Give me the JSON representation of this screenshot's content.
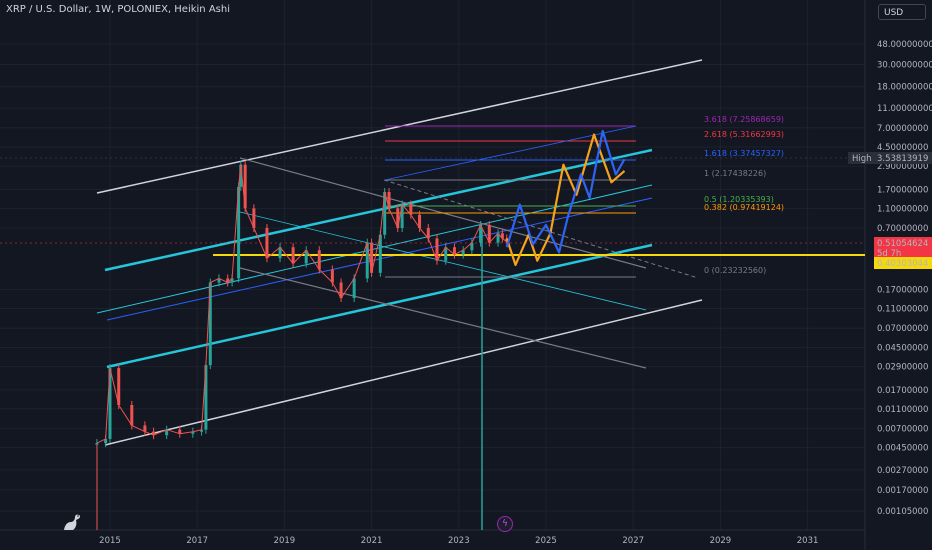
{
  "header": {
    "title": "XRP / U.S. Dollar, 1W, POLONIEX, Heikin Ashi",
    "currency": "USD"
  },
  "icons": {
    "logo": "tradingview-logo-icon",
    "event": "lightning-icon"
  },
  "chart_data": {
    "type": "candlestick",
    "y_scale": "log",
    "y_ticks": [
      "48.00000000",
      "30.00000000",
      "18.00000000",
      "11.00000000",
      "7.00000000",
      "4.50000000",
      "2.90000000",
      "1.70000000",
      "1.10000000",
      "0.70000000",
      "0.17000000",
      "0.11000000",
      "0.07000000",
      "0.04500000",
      "0.02900000",
      "0.01700000",
      "0.01100000",
      "0.00700000",
      "0.00450000",
      "0.00270000",
      "0.00170000",
      "0.00105000"
    ],
    "x_ticks": [
      "2015",
      "2017",
      "2019",
      "2021",
      "2023",
      "2025",
      "2027",
      "2029",
      "2031"
    ],
    "markers": [
      {
        "label": "High",
        "value": "3.53813919",
        "color": "#2a2e39"
      },
      {
        "label": "",
        "value": "0.51054624",
        "color": "#f23645"
      },
      {
        "label": "",
        "value": "5d 7h",
        "color": "#f23645"
      },
      {
        "label": "",
        "value": "0.40303044",
        "color": "#f5d90a"
      }
    ],
    "fib_levels": [
      {
        "ratio": "3.618",
        "value": "7.25868659",
        "color": "#9c27b0"
      },
      {
        "ratio": "2.618",
        "value": "5.31662993",
        "color": "#f23645"
      },
      {
        "ratio": "1.618",
        "value": "3.37457327",
        "color": "#2962ff"
      },
      {
        "ratio": "1",
        "value": "2.17438226",
        "color": "#787b86"
      },
      {
        "ratio": "0.5",
        "value": "1.20335393",
        "color": "#4caf50"
      },
      {
        "ratio": "0.382",
        "value": "0.97419124",
        "color": "#ff9800"
      },
      {
        "ratio": "0",
        "value": "0.23232560",
        "color": "#787b86"
      }
    ],
    "price_series": [
      {
        "t": 2014.7,
        "v": 0.005
      },
      {
        "t": 2014.9,
        "v": 0.0055
      },
      {
        "t": 2015.0,
        "v": 0.028
      },
      {
        "t": 2015.2,
        "v": 0.012
      },
      {
        "t": 2015.5,
        "v": 0.0075
      },
      {
        "t": 2015.8,
        "v": 0.0065
      },
      {
        "t": 2016.0,
        "v": 0.006
      },
      {
        "t": 2016.3,
        "v": 0.0068
      },
      {
        "t": 2016.6,
        "v": 0.0062
      },
      {
        "t": 2016.9,
        "v": 0.0065
      },
      {
        "t": 2017.1,
        "v": 0.0068
      },
      {
        "t": 2017.2,
        "v": 0.03
      },
      {
        "t": 2017.3,
        "v": 0.2
      },
      {
        "t": 2017.5,
        "v": 0.22
      },
      {
        "t": 2017.7,
        "v": 0.2
      },
      {
        "t": 2017.8,
        "v": 0.22
      },
      {
        "t": 2017.95,
        "v": 1.8
      },
      {
        "t": 2018.0,
        "v": 3.0
      },
      {
        "t": 2018.1,
        "v": 1.1
      },
      {
        "t": 2018.3,
        "v": 0.7
      },
      {
        "t": 2018.6,
        "v": 0.35
      },
      {
        "t": 2018.9,
        "v": 0.45
      },
      {
        "t": 2019.2,
        "v": 0.31
      },
      {
        "t": 2019.5,
        "v": 0.42
      },
      {
        "t": 2019.8,
        "v": 0.27
      },
      {
        "t": 2020.1,
        "v": 0.2
      },
      {
        "t": 2020.3,
        "v": 0.14
      },
      {
        "t": 2020.6,
        "v": 0.22
      },
      {
        "t": 2020.9,
        "v": 0.5
      },
      {
        "t": 2021.0,
        "v": 0.25
      },
      {
        "t": 2021.2,
        "v": 0.6
      },
      {
        "t": 2021.3,
        "v": 1.6
      },
      {
        "t": 2021.4,
        "v": 1.1
      },
      {
        "t": 2021.6,
        "v": 0.7
      },
      {
        "t": 2021.7,
        "v": 1.2
      },
      {
        "t": 2021.9,
        "v": 0.95
      },
      {
        "t": 2022.1,
        "v": 0.7
      },
      {
        "t": 2022.3,
        "v": 0.55
      },
      {
        "t": 2022.5,
        "v": 0.33
      },
      {
        "t": 2022.7,
        "v": 0.45
      },
      {
        "t": 2022.9,
        "v": 0.38
      },
      {
        "t": 2023.1,
        "v": 0.42
      },
      {
        "t": 2023.3,
        "v": 0.5
      },
      {
        "t": 2023.5,
        "v": 0.75
      },
      {
        "t": 2023.7,
        "v": 0.5
      },
      {
        "t": 2023.9,
        "v": 0.62
      },
      {
        "t": 2024.0,
        "v": 0.55
      },
      {
        "t": 2024.1,
        "v": 0.51
      }
    ],
    "projection_orange": [
      {
        "t": 2024.1,
        "v": 0.55
      },
      {
        "t": 2024.3,
        "v": 0.3
      },
      {
        "t": 2024.6,
        "v": 0.6
      },
      {
        "t": 2024.8,
        "v": 0.33
      },
      {
        "t": 2025.1,
        "v": 0.62
      },
      {
        "t": 2025.4,
        "v": 3.0
      },
      {
        "t": 2025.7,
        "v": 1.5
      },
      {
        "t": 2026.1,
        "v": 6.0
      },
      {
        "t": 2026.5,
        "v": 2.0
      },
      {
        "t": 2026.8,
        "v": 2.6
      }
    ],
    "projection_blue": [
      {
        "t": 2024.1,
        "v": 0.45
      },
      {
        "t": 2024.4,
        "v": 1.2
      },
      {
        "t": 2024.7,
        "v": 0.48
      },
      {
        "t": 2025.0,
        "v": 0.75
      },
      {
        "t": 2025.3,
        "v": 0.4
      },
      {
        "t": 2025.5,
        "v": 0.9
      },
      {
        "t": 2025.8,
        "v": 2.4
      },
      {
        "t": 2026.0,
        "v": 1.4
      },
      {
        "t": 2026.3,
        "v": 6.5
      },
      {
        "t": 2026.6,
        "v": 2.4
      },
      {
        "t": 2026.8,
        "v": 3.4
      }
    ]
  }
}
